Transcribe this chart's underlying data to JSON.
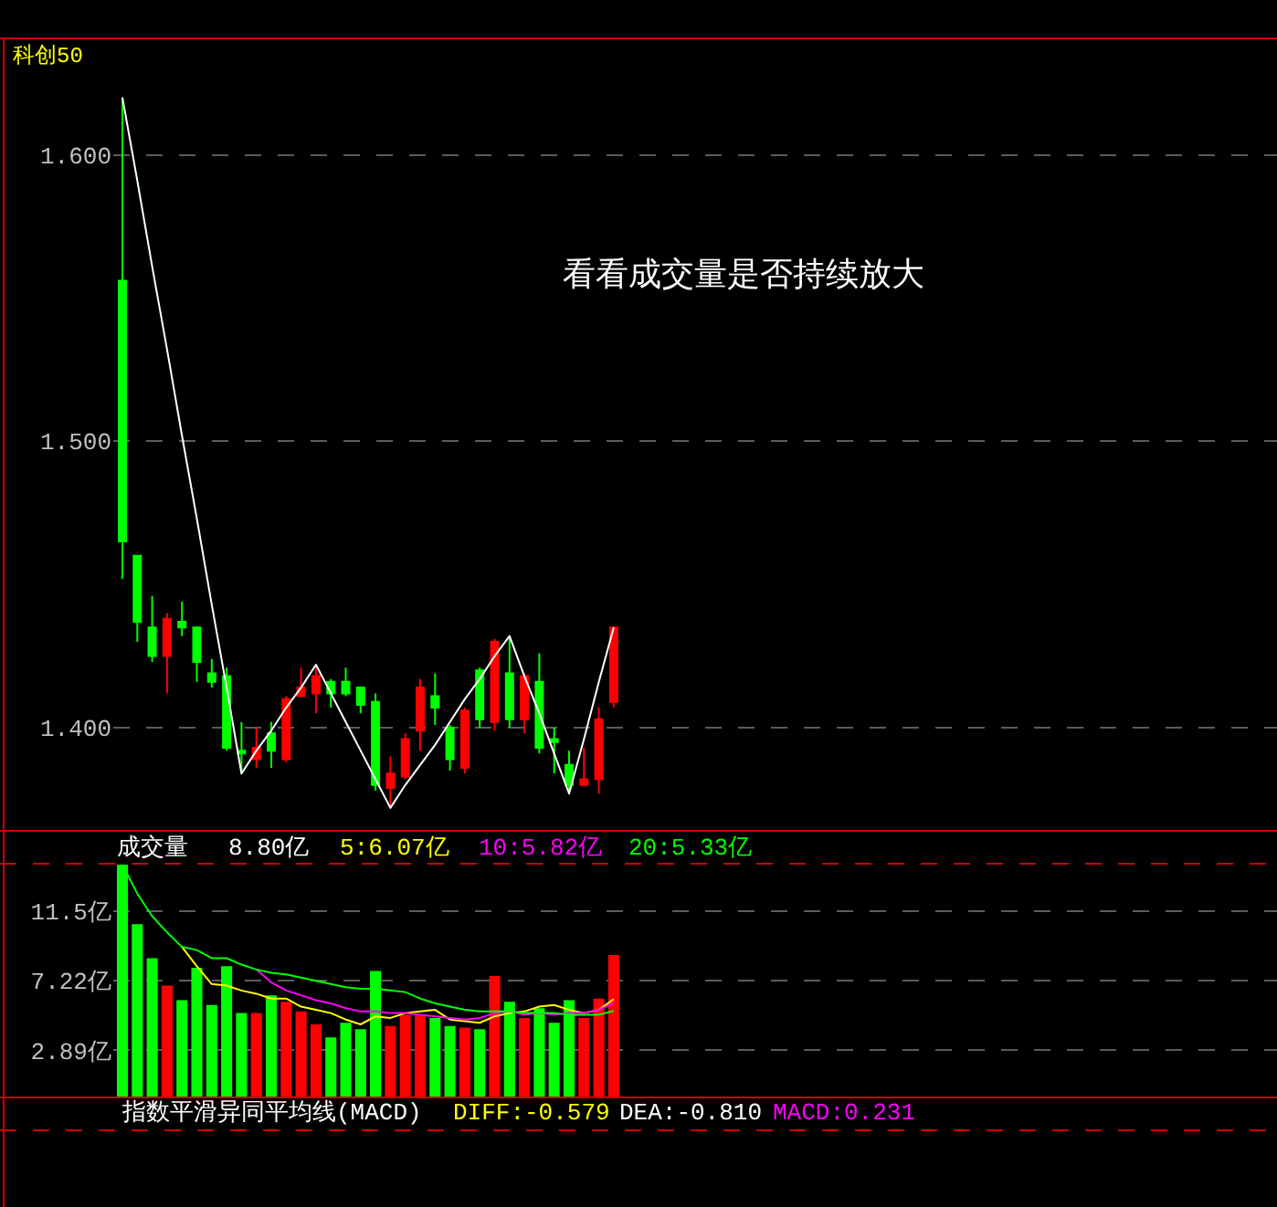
{
  "chart_data": [
    {
      "type": "candlestick",
      "title": "科创50",
      "annotations": [
        "看看成交量是否持续放大"
      ],
      "categories": [
        null,
        null,
        null,
        null,
        null,
        null,
        null,
        null,
        null,
        null,
        null,
        null,
        null,
        null,
        null,
        null,
        null,
        null,
        null,
        null,
        null,
        null,
        null,
        null,
        null,
        null,
        null,
        null,
        null,
        null,
        null,
        null,
        null,
        null
      ],
      "ohlc": [
        [
          1.556,
          1.62,
          1.452,
          1.465
        ],
        [
          1.46,
          1.46,
          1.43,
          1.437
        ],
        [
          1.435,
          1.446,
          1.423,
          1.425
        ],
        [
          1.425,
          1.44,
          1.412,
          1.438
        ],
        [
          1.437,
          1.444,
          1.432,
          1.435
        ],
        [
          1.435,
          1.435,
          1.416,
          1.423
        ],
        [
          1.419,
          1.424,
          1.414,
          1.416
        ],
        [
          1.418,
          1.421,
          1.392,
          1.393
        ],
        [
          1.392,
          1.402,
          1.384,
          1.391
        ],
        [
          1.389,
          1.4,
          1.386,
          1.393
        ],
        [
          1.398,
          1.402,
          1.386,
          1.392
        ],
        [
          1.389,
          1.411,
          1.388,
          1.41
        ],
        [
          1.411,
          1.421,
          1.411,
          1.414
        ],
        [
          1.412,
          1.422,
          1.405,
          1.418
        ],
        [
          1.416,
          1.417,
          1.407,
          1.412
        ],
        [
          1.416,
          1.421,
          1.411,
          1.412
        ],
        [
          1.414,
          1.414,
          1.405,
          1.408
        ],
        [
          1.409,
          1.412,
          1.378,
          1.38
        ],
        [
          1.379,
          1.39,
          1.372,
          1.384
        ],
        [
          1.383,
          1.398,
          1.382,
          1.396
        ],
        [
          1.399,
          1.417,
          1.392,
          1.414
        ],
        [
          1.411,
          1.419,
          1.401,
          1.407
        ],
        [
          1.4,
          1.401,
          1.385,
          1.389
        ],
        [
          1.386,
          1.407,
          1.384,
          1.406
        ],
        [
          1.42,
          1.421,
          1.4,
          1.403
        ],
        [
          1.402,
          1.431,
          1.399,
          1.43
        ],
        [
          1.419,
          1.432,
          1.4,
          1.403
        ],
        [
          1.403,
          1.419,
          1.398,
          1.418
        ],
        [
          1.416,
          1.426,
          1.391,
          1.393
        ],
        [
          1.396,
          1.4,
          1.384,
          1.395
        ],
        [
          1.387,
          1.392,
          1.377,
          1.38
        ],
        [
          1.38,
          1.393,
          1.38,
          1.382
        ],
        [
          1.382,
          1.407,
          1.377,
          1.403
        ],
        [
          1.409,
          1.435,
          1.407,
          1.435
        ]
      ],
      "colors": [
        "#00ff00",
        "#00ff00",
        "#00ff00",
        "#ff0000",
        "#00ff00",
        "#00ff00",
        "#00ff00",
        "#00ff00",
        "#00ff00",
        "#ff0000",
        "#00ff00",
        "#ff0000",
        "#ff0000",
        "#ff0000",
        "#00ff00",
        "#00ff00",
        "#00ff00",
        "#00ff00",
        "#ff0000",
        "#ff0000",
        "#ff0000",
        "#00ff00",
        "#00ff00",
        "#ff0000",
        "#00ff00",
        "#ff0000",
        "#00ff00",
        "#ff0000",
        "#00ff00",
        "#00ff00",
        "#00ff00",
        "#ff0000",
        "#ff0000",
        "#ff0000"
      ],
      "series": [
        {
          "type": "line",
          "color": "#ffffff",
          "values": [
            1.62,
            1.591,
            1.561,
            1.532,
            1.502,
            1.473,
            1.443,
            1.414,
            1.384,
            1.392,
            1.399,
            1.407,
            1.414,
            1.422,
            1.412,
            1.402,
            1.392,
            1.382,
            1.372,
            1.38,
            1.387,
            1.394,
            1.402,
            1.41,
            1.417,
            1.425,
            1.432,
            1.418,
            1.405,
            1.391,
            1.377,
            1.396,
            1.416,
            1.435
          ]
        }
      ],
      "ylim": [
        1.364,
        1.64
      ],
      "yticks": [
        {
          "value": 1.4,
          "label": "1.400"
        },
        {
          "value": 1.5,
          "label": "1.500"
        },
        {
          "value": 1.6,
          "label": "1.600"
        }
      ],
      "grid": "y"
    },
    {
      "type": "bar",
      "title": "成交量",
      "annotations": [
        "8.80亿"
      ],
      "categories": [
        null,
        null,
        null,
        null,
        null,
        null,
        null,
        null,
        null,
        null,
        null,
        null,
        null,
        null,
        null,
        null,
        null,
        null,
        null,
        null,
        null,
        null,
        null,
        null,
        null,
        null,
        null,
        null,
        null,
        null,
        null,
        null,
        null,
        null
      ],
      "series": [
        {
          "type": "bar",
          "colors": [
            "#00ff00",
            "#00ff00",
            "#00ff00",
            "#ff0000",
            "#00ff00",
            "#00ff00",
            "#00ff00",
            "#00ff00",
            "#00ff00",
            "#ff0000",
            "#00ff00",
            "#ff0000",
            "#ff0000",
            "#ff0000",
            "#00ff00",
            "#00ff00",
            "#00ff00",
            "#00ff00",
            "#ff0000",
            "#ff0000",
            "#ff0000",
            "#00ff00",
            "#00ff00",
            "#ff0000",
            "#00ff00",
            "#ff0000",
            "#00ff00",
            "#ff0000",
            "#00ff00",
            "#00ff00",
            "#00ff00",
            "#ff0000",
            "#ff0000",
            "#ff0000"
          ],
          "values": [
            14.4,
            10.7,
            8.6,
            6.9,
            6.0,
            8.0,
            5.7,
            8.1,
            5.2,
            5.2,
            6.3,
            5.9,
            5.3,
            4.5,
            3.7,
            4.6,
            4.2,
            7.8,
            4.4,
            5.1,
            5.1,
            4.9,
            4.4,
            4.3,
            4.2,
            7.5,
            5.9,
            4.9,
            5.5,
            4.6,
            6.0,
            4.9,
            6.1,
            8.8
          ]
        },
        {
          "type": "line",
          "name": "5:6.07亿",
          "color": "#ffff00",
          "values": [
            null,
            null,
            null,
            null,
            9.3,
            8.1,
            7.0,
            6.9,
            6.6,
            6.4,
            6.1,
            6.1,
            5.6,
            5.4,
            5.2,
            4.8,
            4.5,
            5.0,
            4.9,
            5.2,
            5.3,
            5.4,
            4.8,
            4.7,
            4.6,
            5.0,
            5.2,
            5.3,
            5.6,
            5.7,
            5.4,
            5.2,
            5.4,
            6.07
          ]
        },
        {
          "type": "line",
          "name": "10:5.82亿",
          "color": "#ff00ff",
          "values": [
            null,
            null,
            null,
            null,
            null,
            null,
            null,
            null,
            null,
            7.9,
            7.1,
            6.6,
            6.3,
            6.0,
            5.8,
            5.5,
            5.3,
            5.3,
            5.2,
            5.2,
            5.1,
            5.0,
            4.9,
            4.8,
            4.9,
            5.2,
            5.3,
            5.1,
            5.2,
            5.1,
            5.2,
            5.2,
            5.4,
            5.82
          ]
        },
        {
          "type": "line",
          "name": "20:5.33亿",
          "color": "#00ff00",
          "values": [
            14.4,
            12.6,
            11.2,
            10.2,
            9.3,
            9.1,
            8.6,
            8.6,
            8.2,
            7.9,
            7.7,
            7.6,
            7.4,
            7.2,
            7.0,
            6.8,
            6.7,
            6.7,
            6.6,
            6.5,
            6.1,
            5.8,
            5.6,
            5.4,
            5.3,
            5.3,
            5.3,
            5.2,
            5.2,
            5.2,
            5.1,
            5.1,
            5.1,
            5.33
          ]
        }
      ],
      "ylim": [
        0,
        14.45
      ],
      "yticks": [
        {
          "value": 2.89,
          "label": "2.89亿"
        },
        {
          "value": 7.22,
          "label": "7.22亿"
        },
        {
          "value": 11.5,
          "label": "11.5亿"
        }
      ],
      "grid": "y"
    },
    {
      "type": "other",
      "title": "指数平滑异同平均线(MACD)",
      "annotations": [
        "DIFF:-0.579",
        "DEA:-0.810",
        "MACD:0.231"
      ]
    }
  ]
}
